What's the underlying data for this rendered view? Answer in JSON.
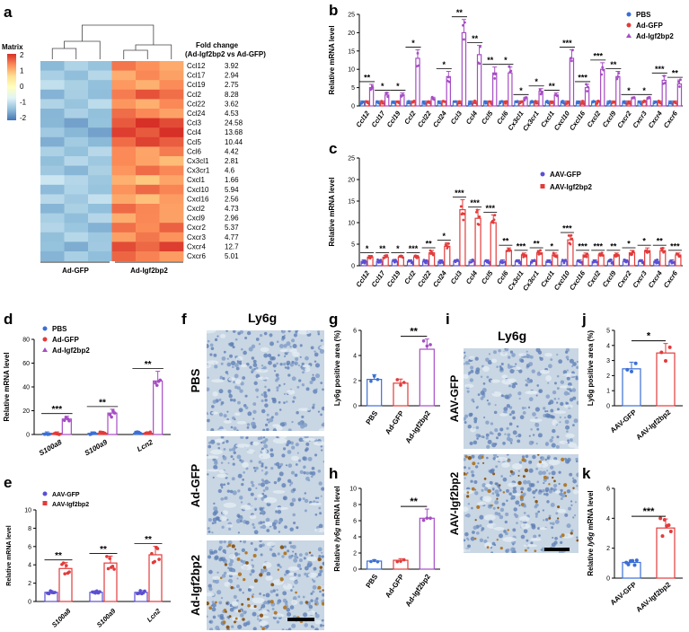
{
  "panel_letters": {
    "a": "a",
    "b": "b",
    "c": "c",
    "d": "d",
    "e": "e",
    "f": "f",
    "g": "g",
    "h": "h",
    "i": "i",
    "j": "j",
    "k": "k"
  },
  "heatmap": {
    "legend_title": "Matrix",
    "legend_ticks": [
      "2",
      "1",
      "0",
      "-1",
      "-2"
    ],
    "fc_header_line1": "Fold change",
    "fc_header_line2": "(Ad-Igf2bp2 vs Ad-GFP)",
    "group_labels": [
      "Ad-GFP",
      "Ad-Igf2bp2"
    ],
    "genes": [
      "Ccl12",
      "Ccl17",
      "Ccl19",
      "Ccl2",
      "Ccl22",
      "Ccl24",
      "Ccl3",
      "Ccl4",
      "Ccl5",
      "Ccl6",
      "Cx3cl1",
      "Cx3cr1",
      "Cxcl1",
      "Cxcl10",
      "Cxcl16",
      "Cxcl2",
      "Cxcl9",
      "Cxcr2",
      "Cxcr3",
      "Cxcr4",
      "Cxcr6"
    ],
    "fold_change": [
      "3.92",
      "2.94",
      "2.75",
      "8.28",
      "3.62",
      "4.53",
      "24.58",
      "13.68",
      "10.44",
      "4.42",
      "2.81",
      "4.6",
      "1.66",
      "5.94",
      "2.56",
      "4.73",
      "2.96",
      "5.37",
      "4.77",
      "12.7",
      "5.01"
    ],
    "colors": {
      "high": "#d73027",
      "mid": "#ffffbf",
      "low": "#4575b4"
    }
  },
  "ui": {
    "ylabel_prefix": "Relative ",
    "ylabel_suffix": " mRNA level",
    "ly6g_gene": "ly6g"
  },
  "chart_data": [
    {
      "id": "b",
      "type": "bar",
      "ylabel": "Relative  mRNA level",
      "ylim": [
        0,
        25
      ],
      "yticks": [
        "0",
        "5",
        "10",
        "15",
        "20",
        "25"
      ],
      "categories": [
        "Ccl12",
        "Ccl17",
        "Ccl19",
        "Ccl2",
        "Ccl22",
        "Ccl24",
        "Ccl3",
        "Ccl4",
        "Ccl5",
        "Ccl6",
        "Cx3cl1",
        "Cx3cr1",
        "Cxcl1",
        "Cxcl10",
        "Cxcl16",
        "Cxcl2",
        "Cxcl9",
        "Cxcr2",
        "Cxcr3",
        "Cxcr4",
        "Cxcr6"
      ],
      "series": [
        {
          "name": "PBS",
          "color": "#3b6fd4",
          "values": [
            1,
            1,
            1,
            1,
            1,
            1,
            1,
            1,
            1,
            1,
            1,
            1,
            1,
            1,
            1,
            1,
            1,
            1,
            1,
            1,
            1
          ]
        },
        {
          "name": "Ad-GFP",
          "color": "#e23b3b",
          "values": [
            1,
            1,
            1,
            1,
            1,
            1,
            1,
            1,
            1,
            1,
            1,
            1,
            1,
            1,
            1,
            1,
            1,
            1,
            1,
            1,
            1
          ]
        },
        {
          "name": "Ad-Igf2bp2",
          "color": "#a64dc4",
          "values": [
            5,
            3,
            3,
            13,
            2,
            8,
            20,
            14,
            9,
            9,
            2,
            4,
            3,
            13,
            5,
            10,
            8,
            2,
            2,
            7,
            6
          ]
        }
      ],
      "significance": [
        "**",
        "*",
        "*",
        "*",
        "",
        "*",
        "**",
        "**",
        "**",
        "*",
        "*",
        "*",
        "**",
        "***",
        "***",
        "***",
        "**",
        "*",
        "*",
        "***",
        "**"
      ]
    },
    {
      "id": "c",
      "type": "bar",
      "ylabel": "Relative  mRNA level",
      "ylim": [
        0,
        25
      ],
      "yticks": [
        "0",
        "5",
        "10",
        "15",
        "20",
        "25"
      ],
      "categories": [
        "Ccl12",
        "Ccl17",
        "Ccl19",
        "Ccl2",
        "Ccl22",
        "Ccl24",
        "Ccl3",
        "Ccl4",
        "Ccl5",
        "Ccl6",
        "Cx3cl1",
        "Cx3cr1",
        "Cxcl1",
        "Cxcl10",
        "Cxcl16",
        "Cxcl2",
        "Cxcl9",
        "Cxcr2",
        "Cxcr3",
        "Cxcr4",
        "Cxcr6"
      ],
      "series": [
        {
          "name": "AAV-GFP",
          "color": "#5a4fd1",
          "values": [
            1,
            1,
            1,
            1,
            1,
            1,
            1,
            1,
            1,
            1,
            1,
            1,
            1,
            1,
            1,
            1,
            1,
            1,
            1,
            1,
            1
          ]
        },
        {
          "name": "AAV-Igf2bp2",
          "color": "#e23b3b",
          "values": [
            2,
            2,
            2,
            2,
            3,
            4.5,
            13,
            11,
            10,
            3.5,
            2.5,
            3,
            2.5,
            6,
            2.5,
            2.5,
            2.5,
            3,
            3.5,
            3.5,
            2.5
          ]
        }
      ],
      "significance": [
        "*",
        "**",
        "*",
        "***",
        "**",
        "*",
        "***",
        "***",
        "***",
        "**",
        "***",
        "**",
        "*",
        "***",
        "***",
        "***",
        "**",
        "*",
        "*",
        "**",
        "***"
      ]
    },
    {
      "id": "d",
      "type": "bar",
      "ylabel": "Relative  mRNA level",
      "ylim": [
        0,
        80
      ],
      "yticks": [
        "0",
        "20",
        "40",
        "60",
        "80"
      ],
      "categories": [
        "S100a8",
        "S100a9",
        "Lcn2"
      ],
      "series": [
        {
          "name": "PBS",
          "color": "#3b6fd4",
          "values": [
            1,
            1,
            1
          ]
        },
        {
          "name": "Ad-GFP",
          "color": "#e23b3b",
          "values": [
            1,
            1,
            1
          ]
        },
        {
          "name": "Ad-Igf2bp2",
          "color": "#a64dc4",
          "values": [
            13,
            18,
            45
          ]
        }
      ],
      "significance": [
        "***",
        "**",
        "**"
      ]
    },
    {
      "id": "e",
      "type": "bar",
      "ylabel": "Relative mRNA level",
      "ylim": [
        0,
        10
      ],
      "yticks": [
        "0",
        "2",
        "4",
        "6",
        "8",
        "10"
      ],
      "categories": [
        "S100a8",
        "S100a9",
        "Lcn2"
      ],
      "series": [
        {
          "name": "AAV-GFP",
          "color": "#5a4fd1",
          "values": [
            1,
            1,
            1
          ]
        },
        {
          "name": "AAV-Igf2bp2",
          "color": "#e23b3b",
          "values": [
            3.6,
            4.2,
            5.1
          ]
        }
      ],
      "significance": [
        "**",
        "**",
        "**"
      ]
    },
    {
      "id": "g",
      "type": "bar",
      "ylabel": "Ly6g positive area (%)",
      "ylim": [
        0,
        6
      ],
      "yticks": [
        "0",
        "2",
        "4",
        "6"
      ],
      "categories": [
        "PBS",
        "Ad-GFP",
        "Ad-Igf2bp2"
      ],
      "series": [
        {
          "name": "Ly6g area",
          "colors": [
            "#3b6fd4",
            "#e23b3b",
            "#a64dc4"
          ],
          "values": [
            2.1,
            1.8,
            4.5
          ]
        }
      ],
      "significance": [
        "**"
      ]
    },
    {
      "id": "h",
      "type": "bar",
      "ylabel": "Relative ly6g mRNA level",
      "ylim": [
        0,
        10
      ],
      "yticks": [
        "0",
        "2",
        "4",
        "6",
        "8",
        "10"
      ],
      "categories": [
        "PBS",
        "Ad-GFP",
        "Ad-Igf2bp2"
      ],
      "series": [
        {
          "name": "ly6g mRNA",
          "colors": [
            "#3b6fd4",
            "#e23b3b",
            "#a64dc4"
          ],
          "values": [
            1,
            1.1,
            6.3
          ]
        }
      ],
      "significance": [
        "**"
      ]
    },
    {
      "id": "j",
      "type": "bar",
      "ylabel": "Ly6g positive area (%)",
      "ylim": [
        0,
        5
      ],
      "yticks": [
        "0",
        "1",
        "2",
        "3",
        "4",
        "5"
      ],
      "categories": [
        "AAV-GFP",
        "AAV-Igf2bp2"
      ],
      "series": [
        {
          "name": "Ly6g area",
          "colors": [
            "#3b6fd4",
            "#e23b3b"
          ],
          "values": [
            2.45,
            3.5
          ]
        }
      ],
      "significance": [
        "*"
      ]
    },
    {
      "id": "k",
      "type": "bar",
      "ylabel": "Relative ly6g mRNA level",
      "ylim": [
        0,
        6
      ],
      "yticks": [
        "0",
        "2",
        "4",
        "6"
      ],
      "categories": [
        "AAV-GFP",
        "AAV-Igf2bp2"
      ],
      "series": [
        {
          "name": "ly6g mRNA",
          "colors": [
            "#3b6fd4",
            "#e23b3b"
          ],
          "values": [
            1.05,
            3.35
          ]
        }
      ],
      "significance": [
        "***"
      ]
    }
  ],
  "micrographs": {
    "f": {
      "title": "Ly6g",
      "rows": [
        "PBS",
        "Ad-GFP",
        "Ad-Igf2bp2"
      ]
    },
    "i": {
      "title": "Ly6g",
      "rows": [
        "AAV-GFP",
        "AAV-Igf2bp2"
      ]
    }
  }
}
